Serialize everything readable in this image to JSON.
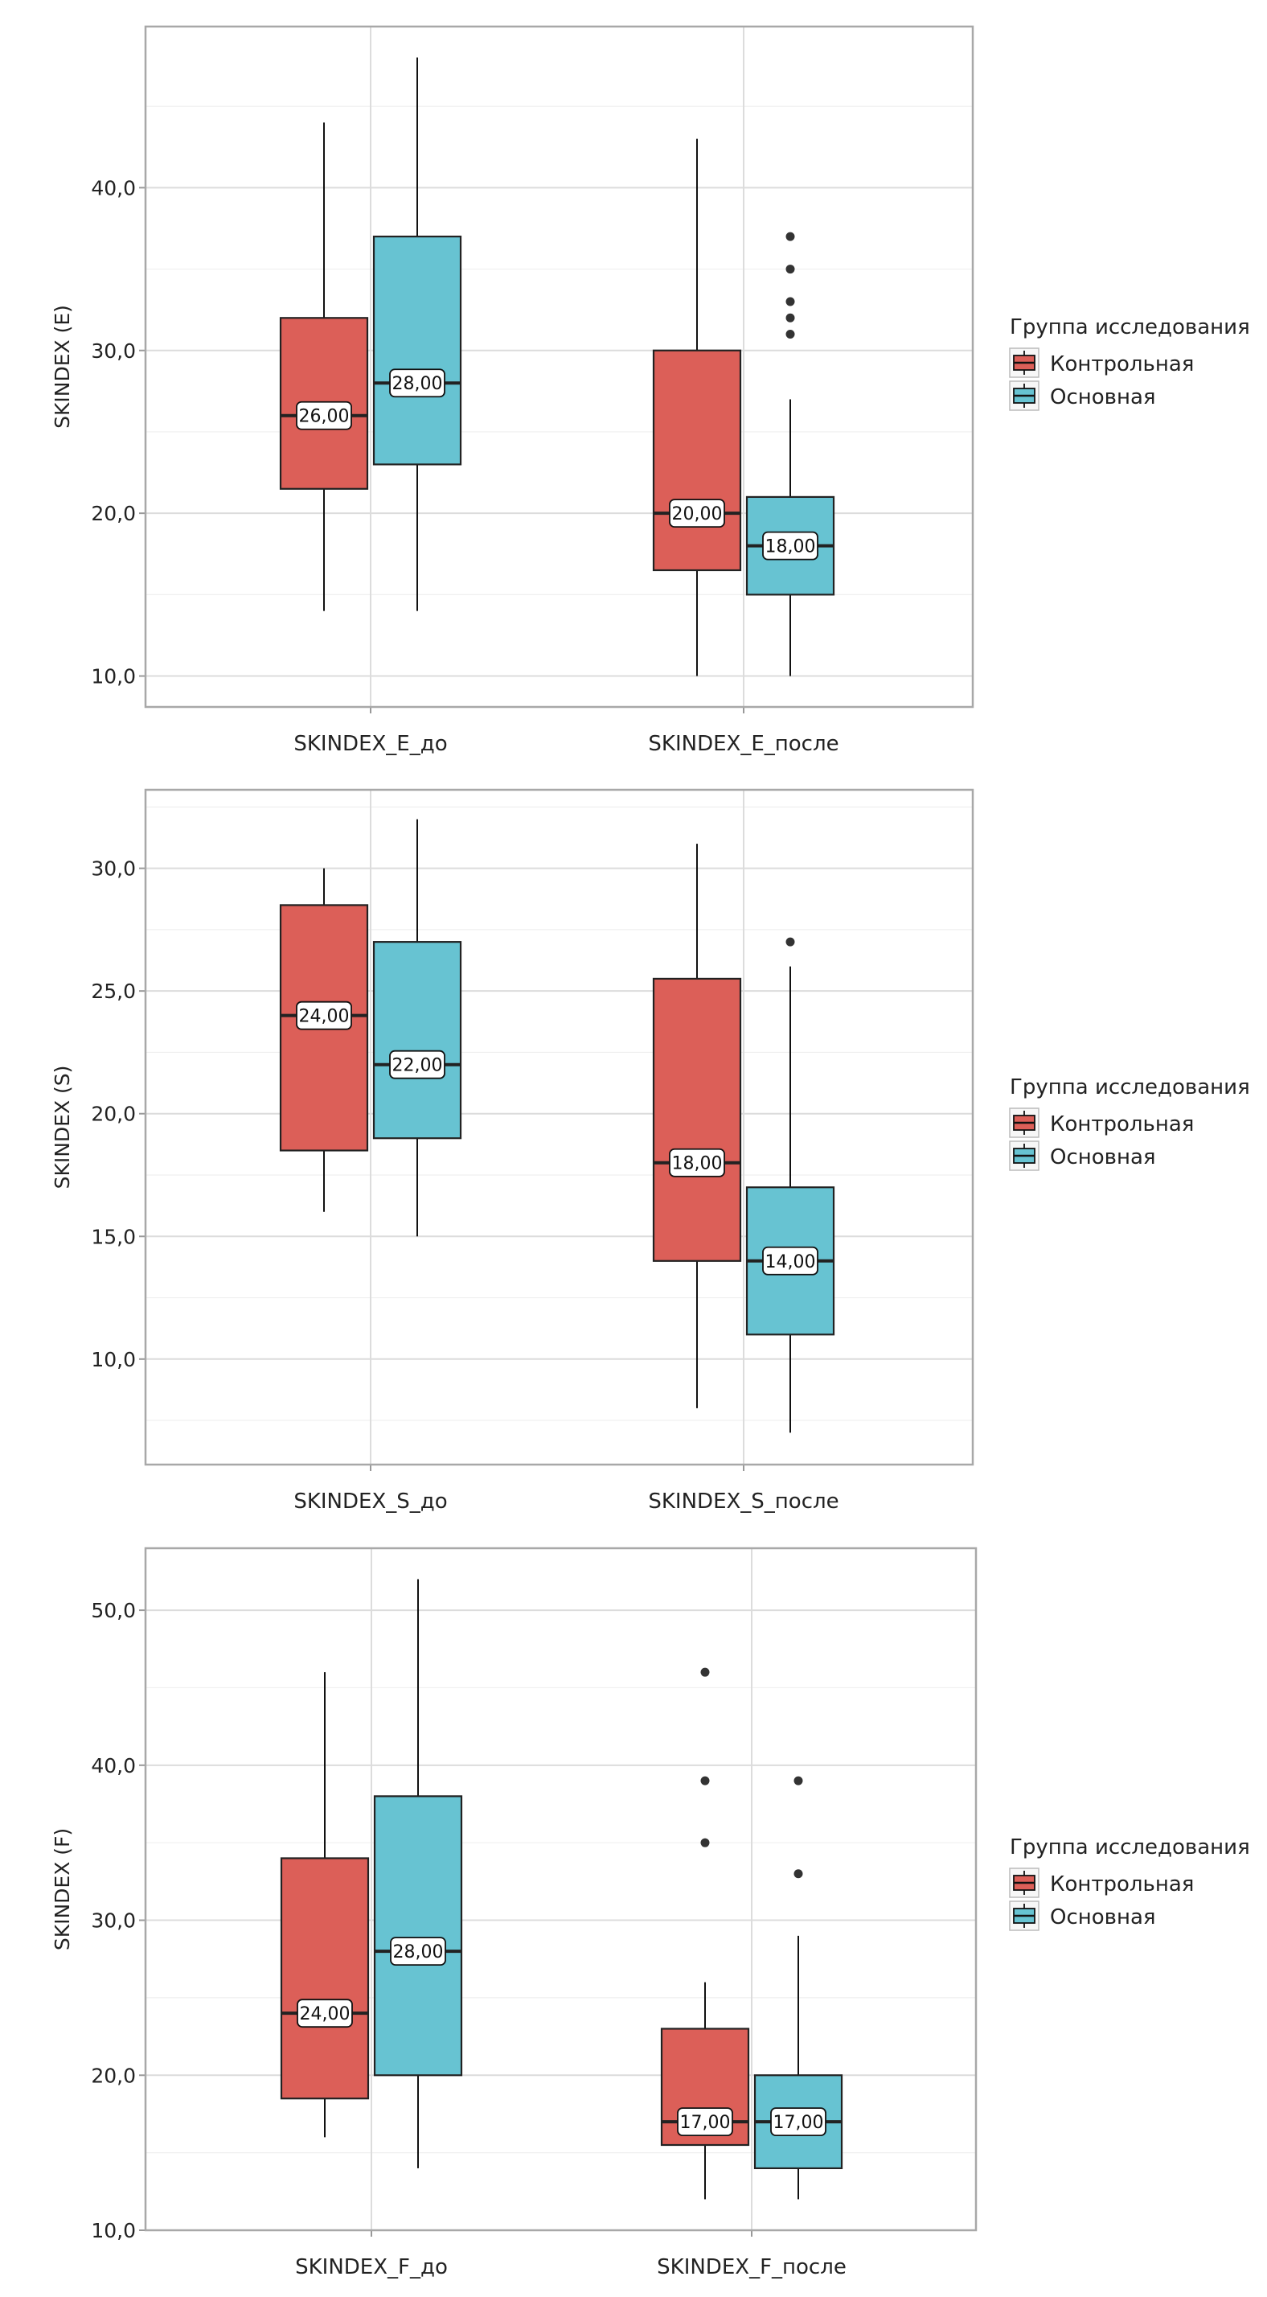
{
  "colors": {
    "control": "#DC5F58",
    "main": "#67C3D2",
    "outline": "#222222",
    "grid_major": "#DCDCDC",
    "grid_minor": "#EFEFEF",
    "panel_border": "#A8A8A8"
  },
  "legend": {
    "title": "Группа исследования",
    "items": [
      {
        "key": "control",
        "label": "Контрольная"
      },
      {
        "key": "main",
        "label": "Основная"
      }
    ]
  },
  "chart_data": [
    {
      "type": "boxplot",
      "title": "",
      "ylabel": "SKINDEX (E)",
      "xlabel": "",
      "ylim": [
        8.1,
        49.9
      ],
      "yticks": [
        10,
        20,
        30,
        40
      ],
      "ytick_labels": [
        "10,0",
        "20,0",
        "30,0",
        "40,0"
      ],
      "grid": true,
      "legend_position": "right",
      "categories": [
        "SKINDEX_E_до",
        "SKINDEX_E_после"
      ],
      "series": [
        {
          "name": "Контрольная",
          "key": "control",
          "boxes": [
            {
              "whisker_low": 14,
              "q1": 21.5,
              "median": 26,
              "q3": 32,
              "whisker_high": 44,
              "outliers": [],
              "median_label": "26,00"
            },
            {
              "whisker_low": 10,
              "q1": 16.5,
              "median": 20,
              "q3": 30,
              "whisker_high": 43,
              "outliers": [],
              "median_label": "20,00"
            }
          ]
        },
        {
          "name": "Основная",
          "key": "main",
          "boxes": [
            {
              "whisker_low": 14,
              "q1": 23,
              "median": 28,
              "q3": 37,
              "whisker_high": 48,
              "outliers": [],
              "median_label": "28,00"
            },
            {
              "whisker_low": 10,
              "q1": 15,
              "median": 18,
              "q3": 21,
              "whisker_high": 27,
              "outliers": [
                31,
                32,
                33,
                35,
                37
              ],
              "median_label": "18,00"
            }
          ]
        }
      ]
    },
    {
      "type": "boxplot",
      "title": "",
      "ylabel": "SKINDEX (S)",
      "xlabel": "",
      "ylim": [
        5.7,
        33.2
      ],
      "yticks": [
        10,
        15,
        20,
        25,
        30
      ],
      "ytick_labels": [
        "10,0",
        "15,0",
        "20,0",
        "25,0",
        "30,0"
      ],
      "grid": true,
      "legend_position": "right",
      "categories": [
        "SKINDEX_S_до",
        "SKINDEX_S_после"
      ],
      "series": [
        {
          "name": "Контрольная",
          "key": "control",
          "boxes": [
            {
              "whisker_low": 16,
              "q1": 18.5,
              "median": 24,
              "q3": 28.5,
              "whisker_high": 30,
              "outliers": [],
              "median_label": "24,00"
            },
            {
              "whisker_low": 8,
              "q1": 14,
              "median": 18,
              "q3": 25.5,
              "whisker_high": 31,
              "outliers": [],
              "median_label": "18,00"
            }
          ]
        },
        {
          "name": "Основная",
          "key": "main",
          "boxes": [
            {
              "whisker_low": 15,
              "q1": 19,
              "median": 22,
              "q3": 27,
              "whisker_high": 32,
              "outliers": [],
              "median_label": "22,00"
            },
            {
              "whisker_low": 7,
              "q1": 11,
              "median": 14,
              "q3": 17,
              "whisker_high": 26,
              "outliers": [
                27
              ],
              "median_label": "14,00"
            }
          ]
        }
      ]
    },
    {
      "type": "boxplot",
      "title": "",
      "ylabel": "SKINDEX (F)",
      "xlabel": "",
      "ylim": [
        10,
        54
      ],
      "yticks": [
        10,
        20,
        30,
        40,
        50
      ],
      "ytick_labels": [
        "10,0",
        "20,0",
        "30,0",
        "40,0",
        "50,0"
      ],
      "grid": true,
      "legend_position": "right",
      "categories": [
        "SKINDEX_F_до",
        "SKINDEX_F_после"
      ],
      "series": [
        {
          "name": "Контрольная",
          "key": "control",
          "boxes": [
            {
              "whisker_low": 16,
              "q1": 18.5,
              "median": 24,
              "q3": 34,
              "whisker_high": 46,
              "outliers": [],
              "median_label": "24,00"
            },
            {
              "whisker_low": 12,
              "q1": 15.5,
              "median": 17,
              "q3": 23,
              "whisker_high": 26,
              "outliers": [
                35,
                39,
                46
              ],
              "median_label": "17,00"
            }
          ]
        },
        {
          "name": "Основная",
          "key": "main",
          "boxes": [
            {
              "whisker_low": 14,
              "q1": 20,
              "median": 28,
              "q3": 38,
              "whisker_high": 52,
              "outliers": [],
              "median_label": "28,00"
            },
            {
              "whisker_low": 12,
              "q1": 14,
              "median": 17,
              "q3": 20,
              "whisker_high": 29,
              "outliers": [
                33,
                39
              ],
              "median_label": "17,00"
            }
          ]
        }
      ]
    }
  ]
}
